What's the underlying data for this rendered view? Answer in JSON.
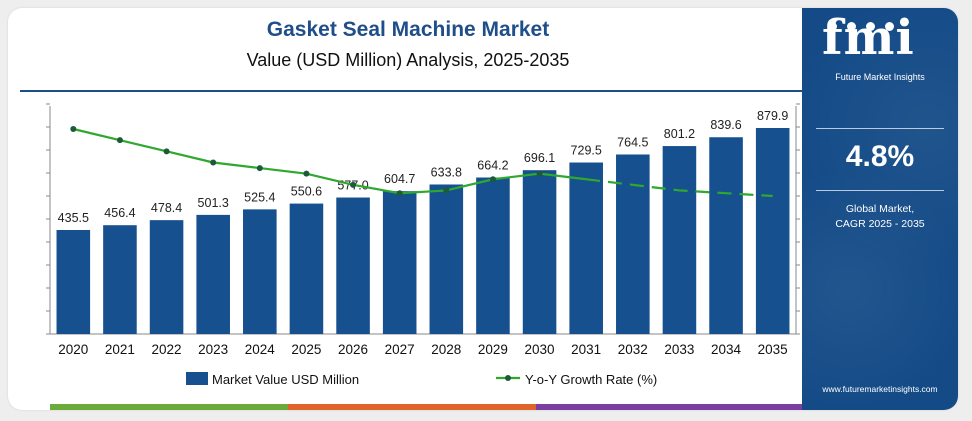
{
  "header": {
    "title": "Gasket Seal Machine Market",
    "subtitle": "Value (USD Million) Analysis, 2025-2035"
  },
  "chart_data": {
    "type": "bar",
    "categories": [
      "2020",
      "2021",
      "2022",
      "2023",
      "2024",
      "2025",
      "2026",
      "2027",
      "2028",
      "2029",
      "2030",
      "2031",
      "2032",
      "2033",
      "2034",
      "2035"
    ],
    "series": [
      {
        "name": "Market Value USD Million",
        "type": "bar",
        "values": [
          435.5,
          456.4,
          478.4,
          501.3,
          525.4,
          550.6,
          577.0,
          604.7,
          633.8,
          664.2,
          696.1,
          729.5,
          764.5,
          801.2,
          839.6,
          879.9
        ],
        "labels": [
          "435.5",
          "456.4",
          "478.4",
          "501.3",
          "525.4",
          "550.6",
          "577.0",
          "604.7",
          "633.8",
          "664.2",
          "696.1",
          "729.5",
          "764.5",
          "801.2",
          "839.6",
          "879.9"
        ]
      },
      {
        "name": "Y-o-Y Growth Rate (%)",
        "type": "line",
        "values": [
          5.3,
          5.1,
          4.9,
          4.7,
          4.6,
          4.5,
          4.3,
          4.15,
          4.2,
          4.4,
          4.5,
          4.4,
          4.3,
          4.2,
          4.15,
          4.1
        ],
        "dashed_from_category": "2031"
      }
    ],
    "ylim": [
      0,
      1100
    ],
    "grid": false,
    "legend_position": "bottom",
    "colors": {
      "bar": "#16508f",
      "line": "#2ea82e",
      "marker": "#1d5a3a",
      "label": "#222222",
      "axis": "#8a8a8a"
    }
  },
  "side_panel": {
    "logo_text": "fmi",
    "logo_subtitle": "Future Market Insights",
    "cagr_value": "4.8%",
    "cagr_label_line1": "Global Market,",
    "cagr_label_line2": "CAGR 2025 - 2035",
    "url": "www.futuremarketinsights.com"
  },
  "colors": {
    "accent": "#1f4f8a",
    "panel": "#144b87",
    "stripes": [
      "#6aab3a",
      "#e0642a",
      "#7a3fa0"
    ]
  }
}
